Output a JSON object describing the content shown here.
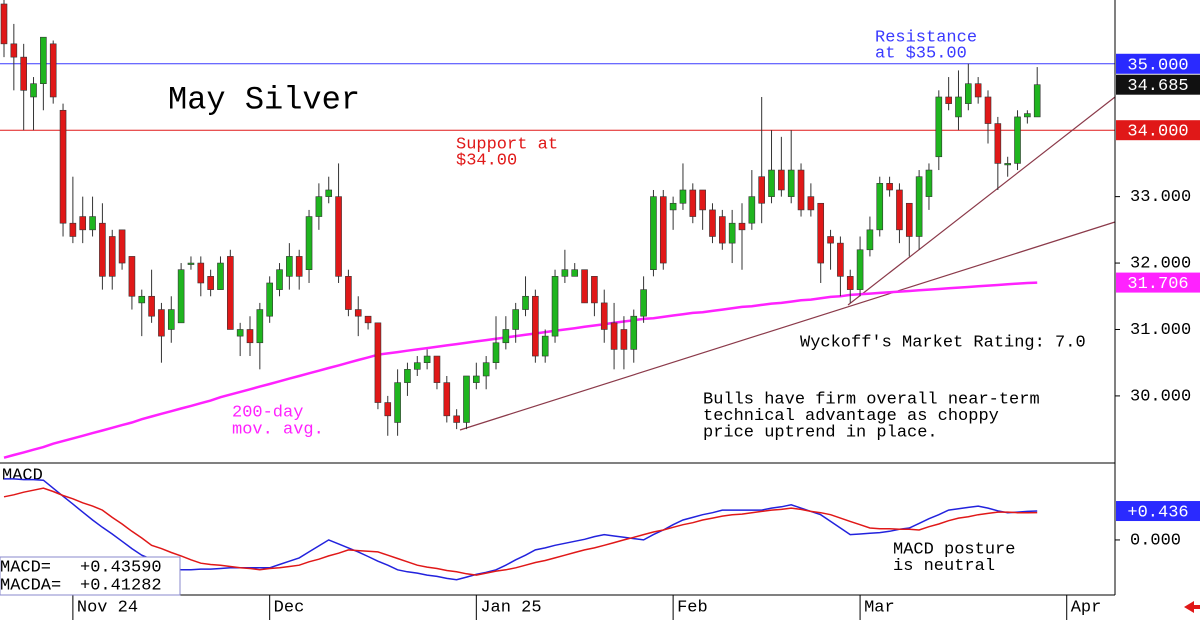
{
  "chart_data": [
    {
      "type": "candlestick",
      "title": "May Silver",
      "categories": [
        null,
        null,
        null,
        null,
        null,
        null,
        null,
        "Nov 24",
        null,
        null,
        null,
        null,
        null,
        null,
        null,
        null,
        null,
        null,
        null,
        null,
        null,
        null,
        null,
        null,
        null,
        null,
        null,
        "Dec",
        null,
        null,
        null,
        null,
        null,
        null,
        null,
        null,
        null,
        null,
        null,
        null,
        null,
        null,
        null,
        null,
        null,
        null,
        null,
        null,
        "Jan 25",
        null,
        null,
        null,
        null,
        null,
        null,
        null,
        null,
        null,
        null,
        null,
        null,
        null,
        null,
        null,
        null,
        null,
        null,
        null,
        "Feb",
        null,
        null,
        null,
        null,
        null,
        null,
        null,
        null,
        null,
        null,
        null,
        null,
        null,
        null,
        null,
        null,
        null,
        null,
        "Mar",
        null,
        null,
        null,
        null,
        null,
        null,
        null,
        null,
        null,
        null,
        null,
        null,
        null,
        null,
        null,
        null,
        null,
        null,
        null,
        null,
        "Apr"
      ],
      "open": [
        35.9,
        35.3,
        35.1,
        34.5,
        34.7,
        35.3,
        34.3,
        32.6,
        32.7,
        32.5,
        32.6,
        32.4,
        32.5,
        32.1,
        31.4,
        31.5,
        31.3,
        31.0,
        31.1,
        32.0,
        32.0,
        31.8,
        31.6,
        32.1,
        30.9,
        31.0,
        30.8,
        31.2,
        31.6,
        31.8,
        32.1,
        31.9,
        32.7,
        33.0,
        33.0,
        31.8,
        31.3,
        31.2,
        31.1,
        29.9,
        29.6,
        30.2,
        30.4,
        30.5,
        30.6,
        30.2,
        29.7,
        29.6,
        30.2,
        30.3,
        30.5,
        30.8,
        31.0,
        31.3,
        31.5,
        30.6,
        30.9,
        31.8,
        31.8,
        31.9,
        31.8,
        31.4,
        31.1,
        31.0,
        30.7,
        31.2,
        31.9,
        33.0,
        32.8,
        32.9,
        33.1,
        33.1,
        32.8,
        32.7,
        32.3,
        32.6,
        32.6,
        33.3,
        33.0,
        33.4,
        33.0,
        33.4,
        33.0,
        32.9,
        32.4,
        32.3,
        31.8,
        31.6,
        32.2,
        32.5,
        33.2,
        33.1,
        32.9,
        32.4,
        33.0,
        33.6,
        34.5,
        34.2,
        34.4,
        34.7,
        34.5,
        34.1,
        33.5,
        33.5,
        34.2,
        34.2,
        null,
        null,
        null
      ],
      "high": [
        35.96,
        35.6,
        35.3,
        34.8,
        35.4,
        35.35,
        34.4,
        33.3,
        33.0,
        33.0,
        32.9,
        32.5,
        32.5,
        32.1,
        31.6,
        31.9,
        31.4,
        31.5,
        32.0,
        32.1,
        32.1,
        31.9,
        32.1,
        32.2,
        31.1,
        31.2,
        31.4,
        31.8,
        32.0,
        32.3,
        32.2,
        32.8,
        33.2,
        33.3,
        33.5,
        31.9,
        31.5,
        31.2,
        31.1,
        30.0,
        30.4,
        30.5,
        30.6,
        30.7,
        30.6,
        30.3,
        29.8,
        30.3,
        30.5,
        30.6,
        31.2,
        31.2,
        31.4,
        31.8,
        31.6,
        31.0,
        31.9,
        32.2,
        32.0,
        31.9,
        31.8,
        31.6,
        31.4,
        31.2,
        31.3,
        31.8,
        33.1,
        33.1,
        33.0,
        33.5,
        33.2,
        33.1,
        32.9,
        32.8,
        32.8,
        32.9,
        33.4,
        34.5,
        34.0,
        33.9,
        34.0,
        33.5,
        33.2,
        32.9,
        32.5,
        32.4,
        31.9,
        32.4,
        32.7,
        33.3,
        33.3,
        33.2,
        32.9,
        33.4,
        33.5,
        34.6,
        34.8,
        34.9,
        35.0,
        34.8,
        34.6,
        34.2,
        33.6,
        34.3,
        34.3,
        34.95,
        null,
        null,
        null
      ],
      "low": [
        35.1,
        34.6,
        34.0,
        34.0,
        34.3,
        34.4,
        32.4,
        32.3,
        32.3,
        32.4,
        31.6,
        31.6,
        31.9,
        31.3,
        30.9,
        31.1,
        30.5,
        30.8,
        31.1,
        31.9,
        31.5,
        31.5,
        31.6,
        31.0,
        30.6,
        30.6,
        30.4,
        31.1,
        31.5,
        31.6,
        31.6,
        31.7,
        32.5,
        32.9,
        31.7,
        31.2,
        30.9,
        31.0,
        29.8,
        29.4,
        29.4,
        30.0,
        30.3,
        30.4,
        30.1,
        29.6,
        29.5,
        29.5,
        30.1,
        30.1,
        30.4,
        30.7,
        30.8,
        31.2,
        30.5,
        30.5,
        30.8,
        31.7,
        31.8,
        31.4,
        31.2,
        30.8,
        30.4,
        30.4,
        30.5,
        31.1,
        31.8,
        31.9,
        32.5,
        32.8,
        32.6,
        32.5,
        32.3,
        32.2,
        32.0,
        31.9,
        32.5,
        32.6,
        32.9,
        33.0,
        32.9,
        32.7,
        32.7,
        31.7,
        31.9,
        31.5,
        31.4,
        31.5,
        32.1,
        32.4,
        33.0,
        32.3,
        32.1,
        32.2,
        32.8,
        33.4,
        34.3,
        34.0,
        34.3,
        34.4,
        33.8,
        33.1,
        33.3,
        33.4,
        34.1,
        34.2,
        null,
        null,
        null
      ],
      "close": [
        35.3,
        35.1,
        34.6,
        34.7,
        35.4,
        34.5,
        32.6,
        32.4,
        32.5,
        32.7,
        31.8,
        31.8,
        32.0,
        31.5,
        31.5,
        31.2,
        30.9,
        31.3,
        31.9,
        32.0,
        31.7,
        31.6,
        32.0,
        31.0,
        31.0,
        30.8,
        31.3,
        31.7,
        31.9,
        32.1,
        31.8,
        32.7,
        33.0,
        33.1,
        31.8,
        31.3,
        31.2,
        31.1,
        29.9,
        29.7,
        30.2,
        30.4,
        30.5,
        30.6,
        30.2,
        29.7,
        29.6,
        30.3,
        30.3,
        30.5,
        30.8,
        31.0,
        31.3,
        31.5,
        30.6,
        30.9,
        31.8,
        31.9,
        31.9,
        31.4,
        31.4,
        31.0,
        30.7,
        30.7,
        31.2,
        31.6,
        33.0,
        32.0,
        32.9,
        33.1,
        32.7,
        32.8,
        32.4,
        32.3,
        32.6,
        32.5,
        33.0,
        32.9,
        33.4,
        33.1,
        33.4,
        32.8,
        32.8,
        32.0,
        32.3,
        31.8,
        31.6,
        32.2,
        32.5,
        33.2,
        33.1,
        32.5,
        32.4,
        33.3,
        33.4,
        34.5,
        34.4,
        34.5,
        34.7,
        34.5,
        34.1,
        33.5,
        33.5,
        34.2,
        34.25,
        34.685,
        null,
        null,
        null
      ],
      "up_color": "#1fb51f",
      "down_color": "#e01818",
      "ylim": [
        28.99,
        35.96
      ],
      "yticks": [
        {
          "value": 30,
          "label": "30.000"
        },
        {
          "value": 31,
          "label": "31.000"
        },
        {
          "value": 32,
          "label": "32.000"
        },
        {
          "value": 33,
          "label": "33.000"
        }
      ],
      "ma": {
        "label": [
          "200-day",
          "mov. avg."
        ],
        "color": "#ff22ff",
        "values": [
          29.07,
          29.11,
          29.15,
          29.19,
          29.23,
          29.28,
          29.32,
          29.36,
          29.4,
          29.44,
          29.48,
          29.52,
          29.56,
          29.6,
          29.65,
          29.69,
          29.73,
          29.77,
          29.81,
          29.85,
          29.89,
          29.93,
          29.98,
          30.02,
          30.06,
          30.1,
          30.14,
          30.18,
          30.22,
          30.26,
          30.3,
          30.34,
          30.38,
          30.42,
          30.46,
          30.5,
          30.54,
          30.58,
          30.62,
          30.64,
          30.66,
          30.68,
          30.7,
          30.72,
          30.74,
          30.76,
          30.78,
          30.8,
          30.82,
          30.84,
          30.86,
          30.88,
          30.9,
          30.92,
          30.94,
          30.96,
          30.98,
          31.0,
          31.02,
          31.04,
          31.06,
          31.08,
          31.1,
          31.12,
          31.14,
          31.16,
          31.17,
          31.19,
          31.21,
          31.23,
          31.25,
          31.26,
          31.28,
          31.3,
          31.32,
          31.34,
          31.35,
          31.37,
          31.39,
          31.4,
          31.42,
          31.44,
          31.45,
          31.47,
          31.49,
          31.5,
          31.52,
          31.53,
          31.54,
          31.55,
          31.56,
          31.57,
          31.58,
          31.59,
          31.6,
          31.61,
          31.62,
          31.63,
          31.64,
          31.65,
          31.66,
          31.67,
          31.68,
          31.69,
          31.7,
          31.706,
          null,
          null,
          null
        ]
      },
      "levels": [
        {
          "value": 35,
          "color": "#3a3aff",
          "label": [
            "Resistance",
            "at $35.00"
          ]
        },
        {
          "value": 34,
          "color": "#e01818",
          "label": [
            "Support at",
            "$34.00"
          ]
        }
      ],
      "price_tags": [
        {
          "value": 35,
          "label": "35.000",
          "color": "#2a2aff"
        },
        {
          "value": 34.685,
          "label": "34.685",
          "color": "#111111"
        },
        {
          "value": 34,
          "label": "34.000",
          "color": "#e01818"
        },
        {
          "value": 31.706,
          "label": "31.706",
          "color": "#ff22ff"
        }
      ],
      "annotations": [
        [
          "Wyckoff's Market Rating: 7.0"
        ],
        [
          "Bulls have firm overall near-term",
          "technical advantage as choppy",
          "price uptrend in place."
        ]
      ]
    },
    {
      "type": "line",
      "title": "MACD",
      "series": [
        {
          "name": "MACD",
          "color": "#2222dd",
          "values": [
            0.92,
            0.92,
            0.91,
            0.91,
            0.9,
            0.78,
            0.66,
            0.54,
            0.42,
            0.3,
            0.19,
            0.09,
            -0.02,
            -0.13,
            -0.23,
            -0.29,
            -0.34,
            -0.4,
            -0.45,
            -0.45,
            -0.44,
            -0.44,
            -0.43,
            -0.42,
            -0.42,
            -0.42,
            -0.42,
            -0.42,
            -0.37,
            -0.32,
            -0.27,
            -0.18,
            -0.09,
            0.0,
            -0.06,
            -0.12,
            -0.18,
            -0.25,
            -0.32,
            -0.38,
            -0.45,
            -0.48,
            -0.5,
            -0.53,
            -0.55,
            -0.58,
            -0.6,
            -0.56,
            -0.52,
            -0.49,
            -0.45,
            -0.38,
            -0.3,
            -0.23,
            -0.15,
            -0.12,
            -0.08,
            -0.05,
            -0.02,
            0.01,
            0.05,
            0.08,
            0.06,
            0.04,
            0.02,
            0.0,
            0.08,
            0.15,
            0.23,
            0.3,
            0.34,
            0.38,
            0.41,
            0.45,
            0.45,
            0.45,
            0.45,
            0.45,
            0.48,
            0.5,
            0.53,
            0.48,
            0.43,
            0.38,
            0.28,
            0.18,
            0.08,
            0.09,
            0.1,
            0.11,
            0.13,
            0.16,
            0.18,
            0.25,
            0.32,
            0.38,
            0.45,
            0.47,
            0.49,
            0.51,
            0.48,
            0.44,
            0.41,
            0.42,
            0.43,
            0.4359,
            null,
            null,
            null
          ]
        },
        {
          "name": "MACDA",
          "color": "#e01818",
          "values": [
            0.65,
            0.68,
            0.72,
            0.75,
            0.78,
            0.73,
            0.67,
            0.62,
            0.56,
            0.51,
            0.45,
            0.34,
            0.24,
            0.13,
            0.03,
            -0.08,
            -0.13,
            -0.19,
            -0.24,
            -0.3,
            -0.35,
            -0.37,
            -0.38,
            -0.4,
            -0.42,
            -0.43,
            -0.45,
            -0.43,
            -0.42,
            -0.4,
            -0.38,
            -0.33,
            -0.29,
            -0.24,
            -0.2,
            -0.15,
            -0.16,
            -0.17,
            -0.18,
            -0.23,
            -0.28,
            -0.33,
            -0.38,
            -0.41,
            -0.43,
            -0.46,
            -0.48,
            -0.51,
            -0.53,
            -0.5,
            -0.47,
            -0.45,
            -0.42,
            -0.38,
            -0.34,
            -0.31,
            -0.27,
            -0.23,
            -0.19,
            -0.15,
            -0.12,
            -0.08,
            -0.04,
            0.0,
            0.04,
            0.08,
            0.12,
            0.15,
            0.19,
            0.23,
            0.26,
            0.3,
            0.33,
            0.36,
            0.38,
            0.39,
            0.41,
            0.43,
            0.45,
            0.46,
            0.48,
            0.46,
            0.43,
            0.41,
            0.38,
            0.33,
            0.28,
            0.23,
            0.18,
            0.17,
            0.17,
            0.16,
            0.16,
            0.15,
            0.2,
            0.24,
            0.29,
            0.33,
            0.35,
            0.38,
            0.4,
            0.42,
            0.42,
            0.41,
            0.41,
            0.41282,
            null,
            null,
            null
          ]
        }
      ],
      "ylim": [
        -0.83,
        1.16
      ],
      "yticks": [
        {
          "value": 0,
          "label": "0.000"
        }
      ],
      "price_tags": [
        {
          "value": 0.4359,
          "label": "+0.436",
          "color": "#2a2aff"
        }
      ],
      "readout": [
        {
          "label": "MACD=",
          "text": "+0.43590"
        },
        {
          "label": "MACDA=",
          "text": "+0.41282"
        }
      ],
      "annotation": [
        "MACD posture",
        "is neutral"
      ]
    }
  ]
}
